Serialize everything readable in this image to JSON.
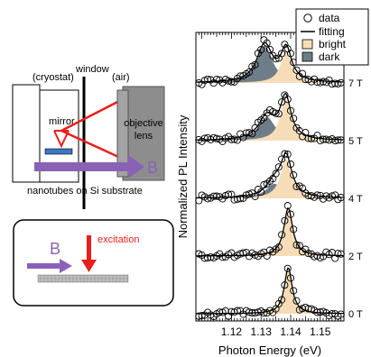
{
  "setup": {
    "cryostat_label": "(cryostat)",
    "window_label": "window",
    "air_label": "(air)",
    "mirror_label": "mirror",
    "objective_label_line1": "objective",
    "objective_label_line2": "lens",
    "field_label": "B",
    "sample_label": "nanotubes on Si substrate"
  },
  "geometry_inset": {
    "field_label": "B",
    "excitation_label": "excitation"
  },
  "colors": {
    "field_arrow": "#8a62b5",
    "excitation": "#e8201c",
    "bright_fill": "#f7dcb8",
    "dark_fill": "#6e7d87",
    "objective_fill": "#8d8d8d",
    "sample_fill": "#3a78c2"
  },
  "chart_data": {
    "type": "line",
    "title": "",
    "xlabel": "Photon Energy (eV)",
    "ylabel": "Normalized PL Intensity",
    "xlim": [
      1.108,
      1.158
    ],
    "xticks": [
      "1.12",
      "1.13",
      "1.14",
      "1.15"
    ],
    "xtick_values": [
      1.12,
      1.13,
      1.14,
      1.15
    ],
    "legend": {
      "position": "top-right",
      "entries": [
        "data",
        "fitting",
        "bright",
        "dark"
      ]
    },
    "spectra": [
      {
        "label": "7 T",
        "bright": {
          "center": 1.1385,
          "height": 0.62,
          "width": 0.0022
        },
        "dark": {
          "center": 1.1312,
          "height": 0.72,
          "width": 0.0032
        }
      },
      {
        "label": "5 T",
        "bright": {
          "center": 1.1383,
          "height": 0.8,
          "width": 0.0022
        },
        "dark": {
          "center": 1.132,
          "height": 0.45,
          "width": 0.0034
        }
      },
      {
        "label": "4 T",
        "bright": {
          "center": 1.1385,
          "height": 0.75,
          "width": 0.0023
        },
        "dark": {
          "center": 1.1345,
          "height": 0.28,
          "width": 0.0034
        }
      },
      {
        "label": "2 T",
        "bright": {
          "center": 1.1392,
          "height": 0.92,
          "width": 0.0018
        },
        "dark": {
          "center": 1.1365,
          "height": 0.0,
          "width": 0.003
        }
      },
      {
        "label": "0 T",
        "bright": {
          "center": 1.1392,
          "height": 0.88,
          "width": 0.0016
        },
        "dark": {
          "center": 1.1365,
          "height": 0.0,
          "width": 0.003
        }
      }
    ]
  }
}
